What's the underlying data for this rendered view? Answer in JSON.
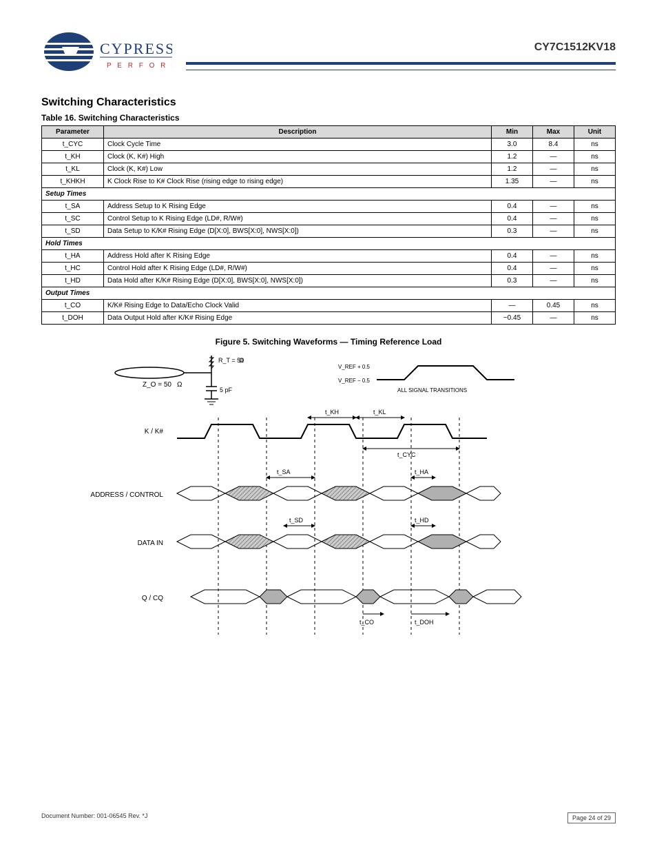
{
  "header": {
    "part_number": "CY7C1512KV18",
    "logo_main": "CYPRESS",
    "logo_tag": "P E R F O R M"
  },
  "section_title": "Switching Characteristics",
  "table_title": "Table 16. Switching Characteristics",
  "table": {
    "headers": [
      "Parameter",
      "Description",
      "Min",
      "Max",
      "Unit"
    ],
    "rows": [
      {
        "type": "row",
        "cells": [
          "t_CYC",
          "Clock Cycle Time",
          "3.0",
          "8.4",
          "ns"
        ]
      },
      {
        "type": "row",
        "cells": [
          "t_KH",
          "Clock (K, K#) High",
          "1.2",
          "—",
          "ns"
        ]
      },
      {
        "type": "row",
        "cells": [
          "t_KL",
          "Clock (K, K#) Low",
          "1.2",
          "—",
          "ns"
        ]
      },
      {
        "type": "row",
        "cells": [
          "t_KHKH",
          "K Clock Rise to K# Clock Rise (rising edge to rising edge)",
          "1.35",
          "—",
          "ns"
        ]
      },
      {
        "type": "subheader",
        "label": "Setup Times"
      },
      {
        "type": "row",
        "cells": [
          "t_SA",
          "Address Setup to K Rising Edge",
          "0.4",
          "—",
          "ns"
        ]
      },
      {
        "type": "row",
        "cells": [
          "t_SC",
          "Control Setup to K Rising Edge (LD#, R/W#)",
          "0.4",
          "—",
          "ns"
        ]
      },
      {
        "type": "row",
        "cells": [
          "t_SD",
          "Data Setup to K/K# Rising Edge (D[X:0], BWS[X:0], NWS[X:0])",
          "0.3",
          "—",
          "ns"
        ]
      },
      {
        "type": "subheader",
        "label": "Hold Times"
      },
      {
        "type": "row",
        "cells": [
          "t_HA",
          "Address Hold after K Rising Edge",
          "0.4",
          "—",
          "ns"
        ]
      },
      {
        "type": "row",
        "cells": [
          "t_HC",
          "Control Hold after K Rising Edge (LD#, R/W#)",
          "0.4",
          "—",
          "ns"
        ]
      },
      {
        "type": "row",
        "cells": [
          "t_HD",
          "Data Hold after K/K# Rising Edge (D[X:0], BWS[X:0], NWS[X:0])",
          "0.3",
          "—",
          "ns"
        ]
      },
      {
        "type": "subheader",
        "label": "Output Times"
      },
      {
        "type": "row",
        "cells": [
          "t_CO",
          "K/K# Rising Edge to Data/Echo Clock Valid",
          "—",
          "0.45",
          "ns"
        ]
      },
      {
        "type": "row",
        "cells": [
          "t_DOH",
          "Data Output Hold after K/K# Rising Edge",
          "−0.45",
          "—",
          "ns"
        ]
      }
    ]
  },
  "figure": {
    "title": "Figure 5. Switching Waveforms — Timing Reference Load",
    "load": {
      "zo_label": "Z_O = 50",
      "ohm_symbol": "Ω",
      "rt_label": "R_T = 50",
      "cap_label": "5 pF"
    },
    "wave": {
      "ref_label": "ALL SIGNAL TRANSITIONS",
      "vref_low": "V_REF − 0.5",
      "vref_high": "V_REF + 0.5",
      "clk_label": "K / K#",
      "addr_label": "ADDRESS / CONTROL",
      "data_label": "DATA IN",
      "dataout_label": "Q / CQ",
      "t_kh": "t_KH",
      "t_kl": "t_KL",
      "t_cyc": "t_CYC",
      "t_sa": "t_SA",
      "t_ha": "t_HA",
      "t_sd": "t_SD",
      "t_hd": "t_HD",
      "t_co": "t_CO",
      "t_doh": "t_DOH"
    }
  },
  "footer": {
    "docnum": "Document Number: 001-06545 Rev. *J",
    "page_label": "Page 24 of 29"
  },
  "colors": {
    "brand_blue": "#1f3f77",
    "brand_red": "#c62828",
    "table_header_bg": "#d9d9d9",
    "hatch_fill": "#cccccc",
    "hatch_fill2": "#b0b0b0"
  }
}
